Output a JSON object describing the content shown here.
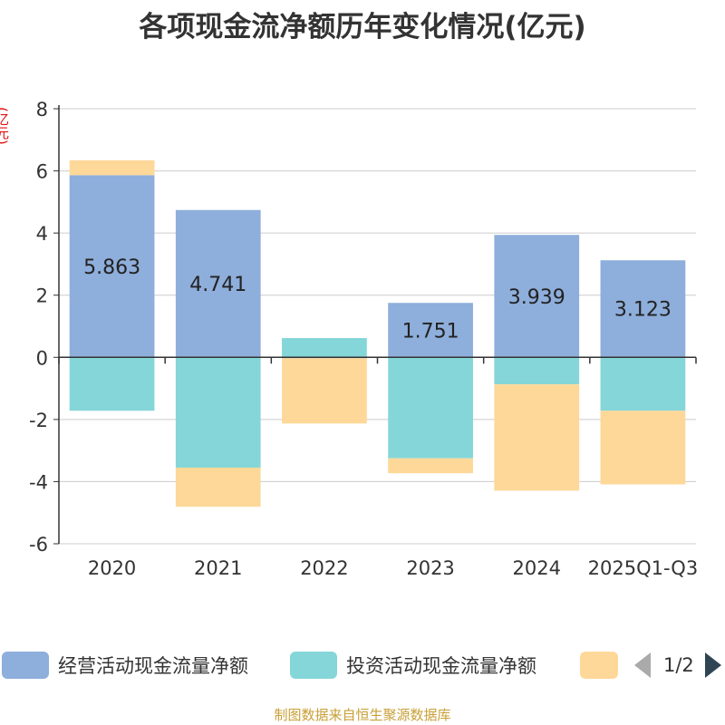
{
  "chart_data": {
    "type": "bar",
    "stacked": true,
    "title": "各项现金流净额历年变化情况(亿元)",
    "ylabel": "(亿元)",
    "xlabel": "",
    "categories": [
      "2020",
      "2021",
      "2022",
      "2023",
      "2024",
      "2025Q1-Q3"
    ],
    "ylim": [
      -6,
      8
    ],
    "yticks": [
      -6,
      -4,
      -2,
      0,
      2,
      4,
      6,
      8
    ],
    "grid": true,
    "series": [
      {
        "name": "经营活动现金流量净额",
        "color": "#8eaedb",
        "values": [
          5.863,
          4.741,
          -0.03,
          1.751,
          3.939,
          3.123
        ],
        "labels": [
          "5.863",
          "4.741",
          "",
          "1.751",
          "3.939",
          "3.123"
        ]
      },
      {
        "name": "投资活动现金流量净额",
        "color": "#85d6d8",
        "values": [
          -1.72,
          -3.55,
          0.62,
          -3.25,
          -0.87,
          -1.72
        ],
        "labels": [
          "",
          "",
          "",
          "",
          "",
          ""
        ]
      },
      {
        "name": "",
        "color": "#fed898",
        "values": [
          0.48,
          -1.26,
          -2.1,
          -0.48,
          -3.42,
          -2.37
        ],
        "labels": [
          "",
          "",
          "",
          "",
          "",
          ""
        ]
      }
    ]
  },
  "legend": {
    "items": [
      {
        "label": "经营活动现金流量净额",
        "color": "#8eaedb"
      },
      {
        "label": "投资活动现金流量净额",
        "color": "#85d6d8"
      },
      {
        "label": "",
        "color": "#fed898"
      }
    ],
    "page_indicator": "1/2"
  },
  "source_note": "制图数据来自恒生聚源数据库"
}
